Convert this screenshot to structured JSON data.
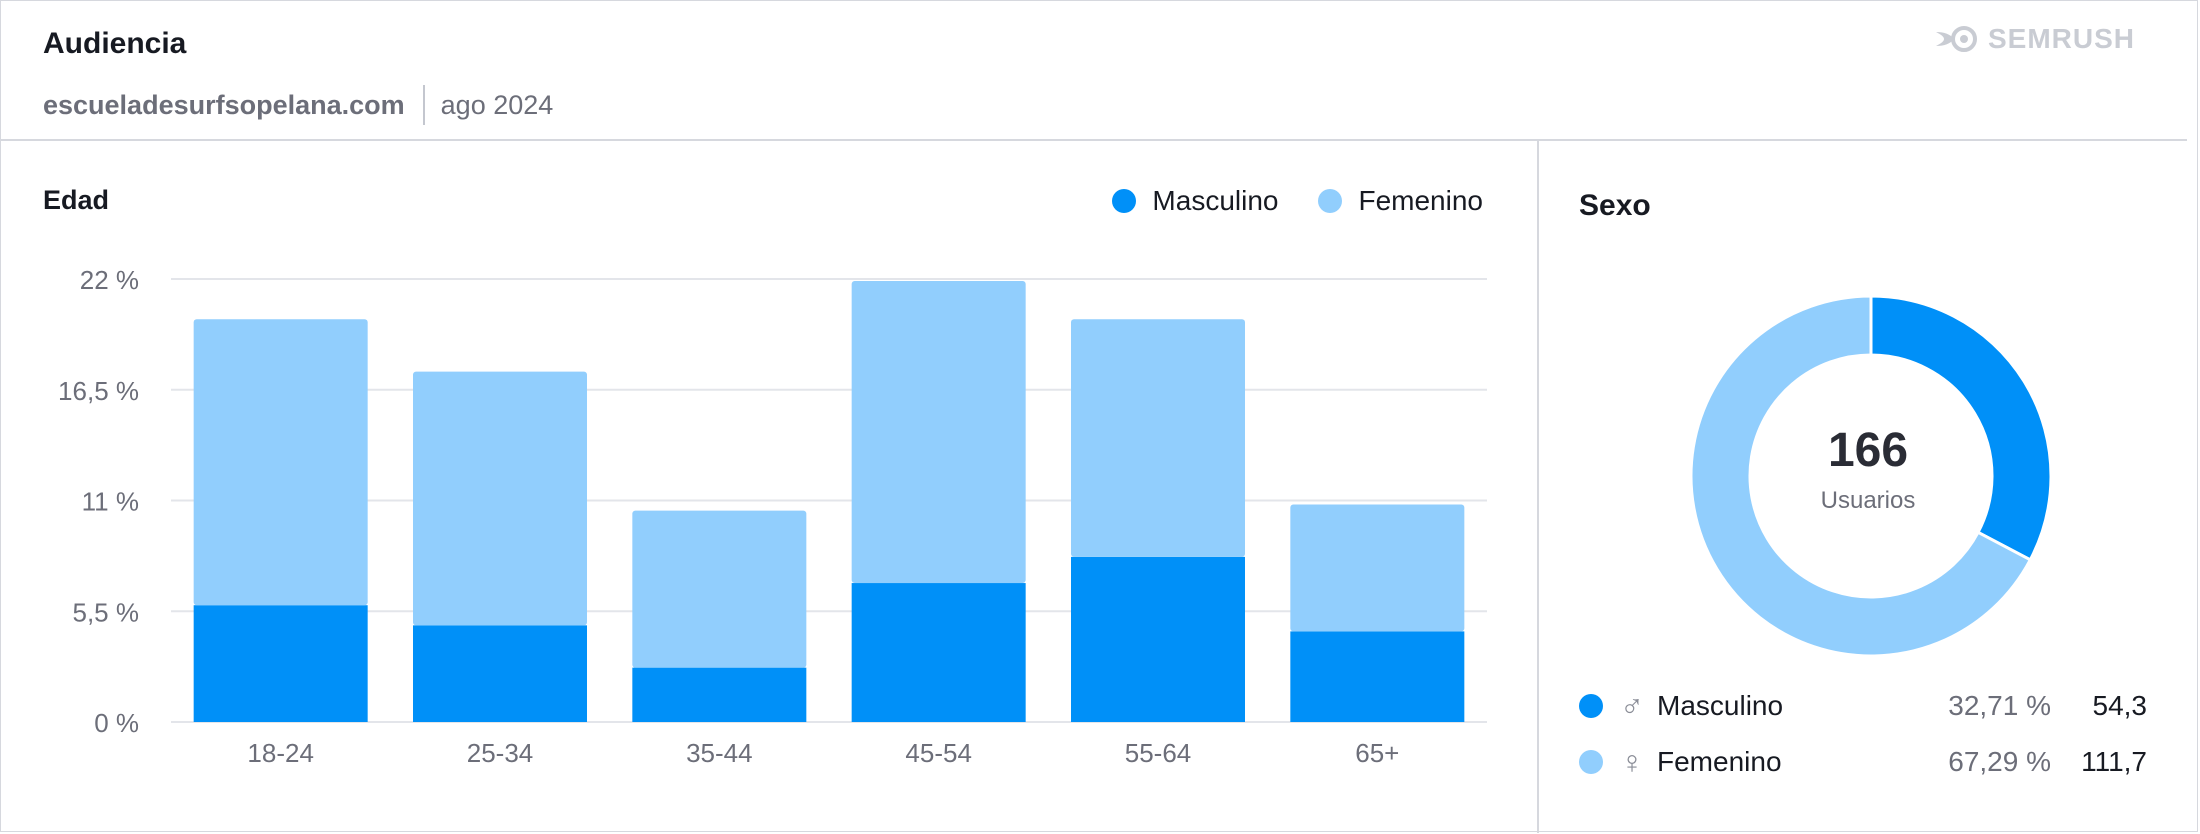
{
  "header": {
    "title": "Audiencia",
    "domain": "escueladesurfsopelana.com",
    "period": "ago 2024",
    "brand": "SEMRUSH"
  },
  "colors": {
    "masculino": "#0090f8",
    "femenino": "#91cefd",
    "grid": "#e3e5ea",
    "axis_text": "#6c6e79"
  },
  "age_panel": {
    "title": "Edad",
    "legend": [
      {
        "label": "Masculino",
        "color": "#0090f8"
      },
      {
        "label": "Femenino",
        "color": "#91cefd"
      }
    ]
  },
  "sex_panel": {
    "title": "Sexo",
    "total_value": "166",
    "total_label": "Usuarios",
    "rows": [
      {
        "symbol": "♂",
        "label": "Masculino",
        "pct": "32,71 %",
        "value": "54,3",
        "color": "#0090f8"
      },
      {
        "symbol": "♀",
        "label": "Femenino",
        "pct": "67,29 %",
        "value": "111,7",
        "color": "#91cefd"
      }
    ]
  },
  "chart_data": [
    {
      "type": "bar",
      "stacked": true,
      "title": "Edad",
      "categories": [
        "18-24",
        "25-34",
        "35-44",
        "45-54",
        "55-64",
        "65+"
      ],
      "series": [
        {
          "name": "Masculino",
          "values": [
            5.8,
            4.8,
            2.7,
            6.9,
            8.2,
            4.5
          ]
        },
        {
          "name": "Femenino",
          "values": [
            14.2,
            12.6,
            7.8,
            15.0,
            11.8,
            6.3
          ]
        }
      ],
      "ylim": [
        0,
        22
      ],
      "yticks": [
        0,
        5.5,
        11,
        16.5,
        22
      ],
      "ytick_labels": [
        "0 %",
        "5,5 %",
        "11 %",
        "16,5 %",
        "22 %"
      ],
      "grid": true,
      "legend": "top-right"
    },
    {
      "type": "pie",
      "donut": true,
      "title": "Sexo",
      "labels": [
        "Masculino",
        "Femenino"
      ],
      "values": [
        32.71,
        67.29
      ]
    }
  ]
}
